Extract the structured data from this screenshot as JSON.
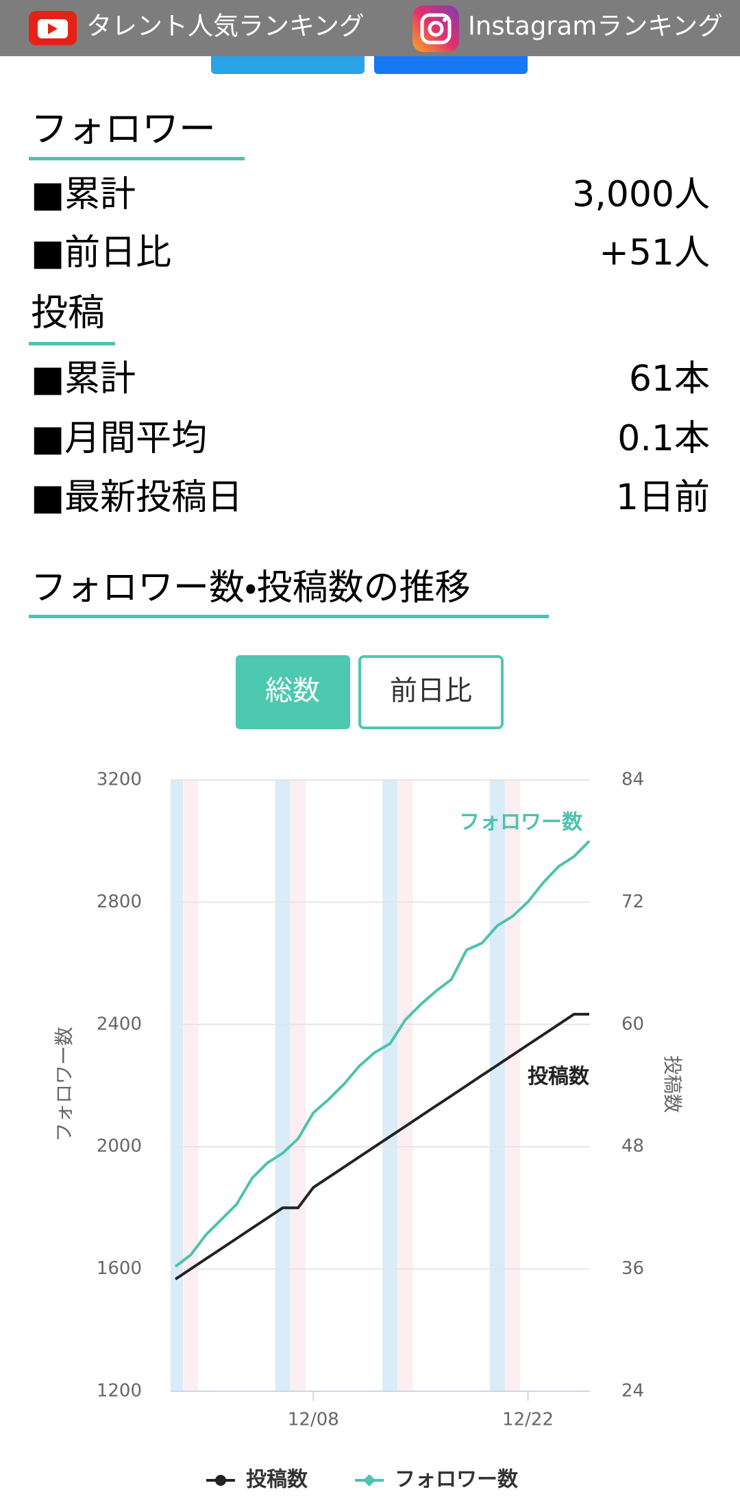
{
  "header": {
    "links": [
      "タレント人気ランキング",
      "Instagramランキング"
    ]
  },
  "sections": [
    {
      "title": "フォロワー",
      "rows": [
        [
          "■累計",
          "3,000人"
        ],
        [
          "■前日比",
          "+51人"
        ]
      ]
    },
    {
      "title": "投稿",
      "rows": [
        [
          "■累計",
          "61本"
        ],
        [
          "■月間平均",
          "0.1本"
        ],
        [
          "■最新投稿日",
          "1日前"
        ]
      ]
    }
  ],
  "chart_heading": "フォロワー数・投稿数の推移",
  "tabs": [
    "総数",
    "前日比"
  ],
  "chart_data": {
    "type": "line",
    "categories": [
      null,
      null,
      null,
      null,
      null,
      null,
      null,
      null,
      null,
      "12/08",
      null,
      null,
      null,
      null,
      null,
      null,
      null,
      null,
      null,
      null,
      null,
      null,
      null,
      "12/22",
      null,
      null,
      null,
      null
    ],
    "series": [
      {
        "name": "投稿数",
        "color": "#222222",
        "axis": "y2",
        "values": [
          35,
          36,
          37,
          38,
          39,
          40,
          41,
          42,
          42,
          44,
          45,
          46,
          47,
          48,
          49,
          50,
          51,
          52,
          53,
          54,
          55,
          56,
          57,
          58,
          59,
          60,
          61,
          61
        ]
      },
      {
        "name": "フォロワー数",
        "color": "#4cc3ad",
        "values": [
          1608,
          1646,
          1712,
          1762,
          1812,
          1897,
          1947,
          1979,
          2026,
          2111,
          2155,
          2205,
          2264,
          2308,
          2337,
          2415,
          2465,
          2509,
          2547,
          2644,
          2666,
          2723,
          2754,
          2801,
          2864,
          2917,
          2949,
          3000
        ]
      }
    ],
    "y_label": "フォロワー数",
    "y2_label": "投稿数",
    "ylim": [
      1200,
      3200
    ],
    "yticks": [
      1200,
      1600,
      2000,
      2400,
      2800,
      3200
    ],
    "y2lim": [
      24,
      84
    ],
    "y2ticks": [
      24,
      36,
      48,
      60,
      72,
      84
    ],
    "grid": true,
    "legend": "bottom"
  }
}
